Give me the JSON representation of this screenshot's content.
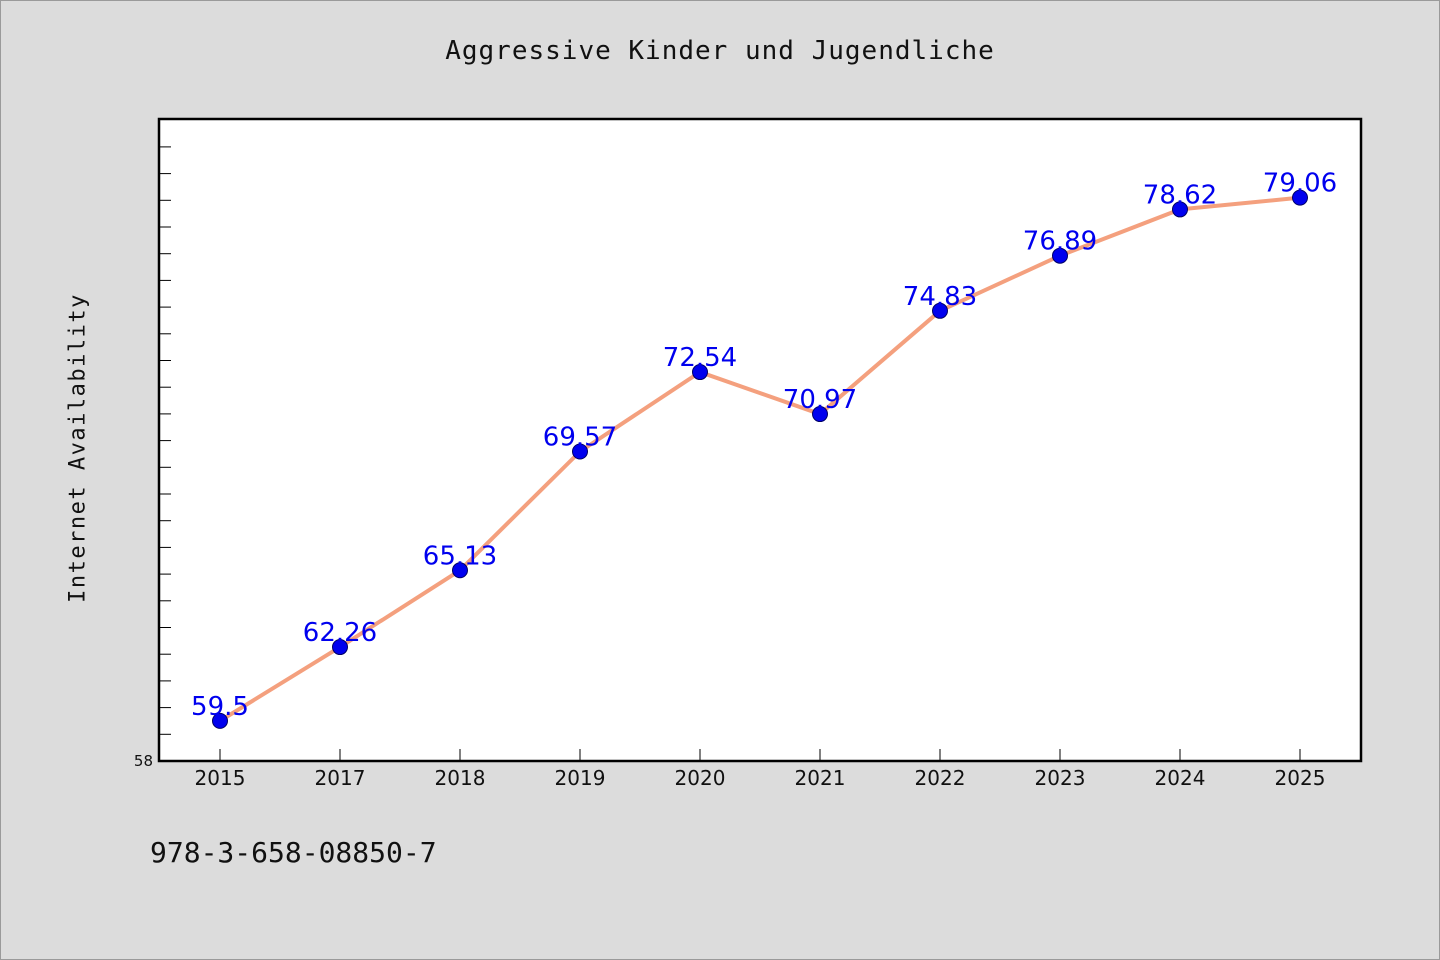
{
  "chart_data": {
    "type": "line",
    "title": "Aggressive Kinder und Jugendliche",
    "xlabel": "",
    "ylabel": "Internet Availability",
    "categories": [
      "2015",
      "2017",
      "2018",
      "2019",
      "2020",
      "2021",
      "2022",
      "2023",
      "2024",
      "2025"
    ],
    "series": [
      {
        "values": [
          59.5,
          62.26,
          65.13,
          69.57,
          72.54,
          70.97,
          74.83,
          76.89,
          78.62,
          79.06
        ],
        "labels": [
          "59.5",
          "62.26",
          "65.13",
          "69.57",
          "72.54",
          "70.97",
          "74.83",
          "76.89",
          "78.62",
          "79.06"
        ]
      }
    ],
    "ylim": [
      58,
      82
    ],
    "y_tick_labels": [
      "58"
    ],
    "grid": false,
    "legend": "none",
    "colors": {
      "line": "#f4a07e",
      "marker": "#0000ee",
      "data_label": "#0000ee",
      "plot_background": "#ffffff",
      "figure_background": "#dcdcdc"
    }
  },
  "footer": {
    "code": "978-3-658-08850-7"
  }
}
